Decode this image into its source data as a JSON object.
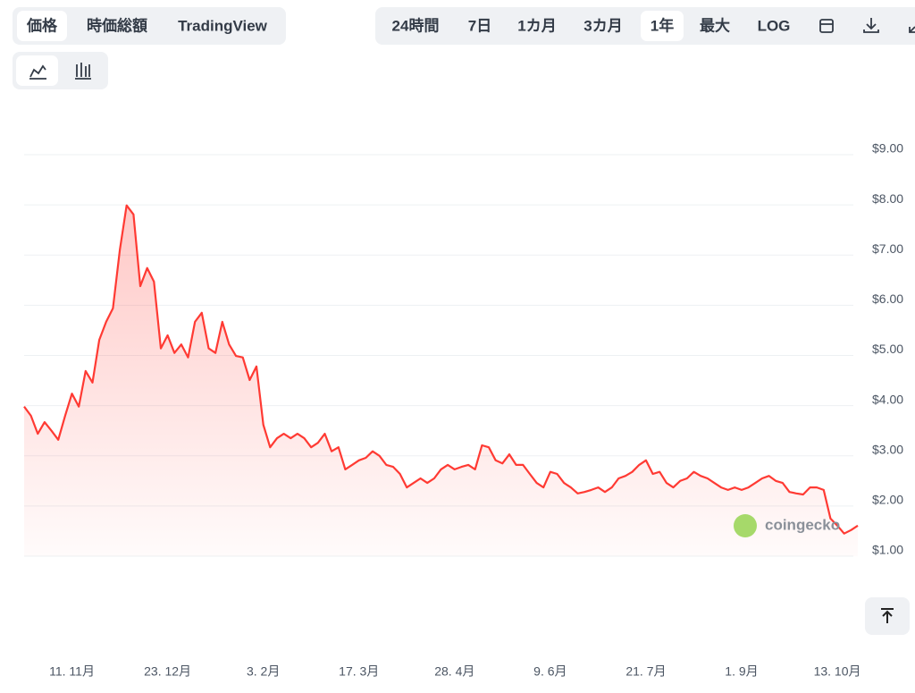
{
  "ui": {
    "tabs": [
      "価格",
      "時価総額",
      "TradingView"
    ],
    "ranges": [
      "24時間",
      "7日",
      "1カ月",
      "3カ月",
      "1年",
      "最大",
      "LOG"
    ],
    "watermark": "coingecko"
  },
  "chart_data": {
    "type": "line",
    "color": "#ff3a33",
    "fill": true,
    "grid": true,
    "categories": [
      null,
      null,
      null,
      null,
      null,
      null,
      null,
      "11. 11月",
      null,
      null,
      null,
      null,
      null,
      null,
      null,
      null,
      null,
      null,
      null,
      null,
      null,
      "23. 12月",
      null,
      null,
      null,
      null,
      null,
      null,
      null,
      null,
      null,
      null,
      null,
      null,
      null,
      "3. 2月",
      null,
      null,
      null,
      null,
      null,
      null,
      null,
      null,
      null,
      null,
      null,
      null,
      null,
      "17. 3月",
      null,
      null,
      null,
      null,
      null,
      null,
      null,
      null,
      null,
      null,
      null,
      null,
      null,
      "28. 4月",
      null,
      null,
      null,
      null,
      null,
      null,
      null,
      null,
      null,
      null,
      null,
      null,
      null,
      "9. 6月",
      null,
      null,
      null,
      null,
      null,
      null,
      null,
      null,
      null,
      null,
      null,
      null,
      null,
      "21. 7月",
      null,
      null,
      null,
      null,
      null,
      null,
      null,
      null,
      null,
      null,
      null,
      null,
      null,
      "1. 9月",
      null,
      null,
      null,
      null,
      null,
      null,
      null,
      null,
      null,
      null,
      null,
      null,
      null,
      "13. 10月",
      null,
      null,
      null
    ],
    "values": [
      3.98,
      3.8,
      3.44,
      3.67,
      3.5,
      3.32,
      3.8,
      4.24,
      3.98,
      4.69,
      4.46,
      5.31,
      5.67,
      5.94,
      7.1,
      7.99,
      7.81,
      6.38,
      6.74,
      6.47,
      5.14,
      5.4,
      5.05,
      5.22,
      4.96,
      5.67,
      5.85,
      5.14,
      5.05,
      5.67,
      5.22,
      4.99,
      4.96,
      4.51,
      4.78,
      3.62,
      3.17,
      3.35,
      3.44,
      3.35,
      3.44,
      3.35,
      3.17,
      3.26,
      3.44,
      3.09,
      3.17,
      2.73,
      2.82,
      2.91,
      2.96,
      3.09,
      3.0,
      2.82,
      2.78,
      2.64,
      2.37,
      2.46,
      2.55,
      2.46,
      2.55,
      2.73,
      2.82,
      2.73,
      2.78,
      2.82,
      2.73,
      3.21,
      3.17,
      2.91,
      2.85,
      3.03,
      2.82,
      2.82,
      2.64,
      2.46,
      2.37,
      2.68,
      2.64,
      2.46,
      2.37,
      2.25,
      2.28,
      2.32,
      2.37,
      2.28,
      2.37,
      2.55,
      2.6,
      2.68,
      2.82,
      2.91,
      2.64,
      2.68,
      2.46,
      2.37,
      2.5,
      2.55,
      2.68,
      2.6,
      2.55,
      2.46,
      2.37,
      2.32,
      2.37,
      2.32,
      2.37,
      2.46,
      2.55,
      2.6,
      2.5,
      2.46,
      2.28,
      2.25,
      2.23,
      2.37,
      2.37,
      2.32,
      1.75,
      1.61,
      1.45,
      1.52,
      1.61
    ],
    "ylim": [
      1,
      9
    ],
    "yticks": [
      {
        "value": 1,
        "label": "$1.00"
      },
      {
        "value": 2,
        "label": "$2.00"
      },
      {
        "value": 3,
        "label": "$3.00"
      },
      {
        "value": 4,
        "label": "$4.00"
      },
      {
        "value": 5,
        "label": "$5.00"
      },
      {
        "value": 6,
        "label": "$6.00"
      },
      {
        "value": 7,
        "label": "$7.00"
      },
      {
        "value": 8,
        "label": "$8.00"
      },
      {
        "value": 9,
        "label": "$9.00"
      }
    ]
  }
}
